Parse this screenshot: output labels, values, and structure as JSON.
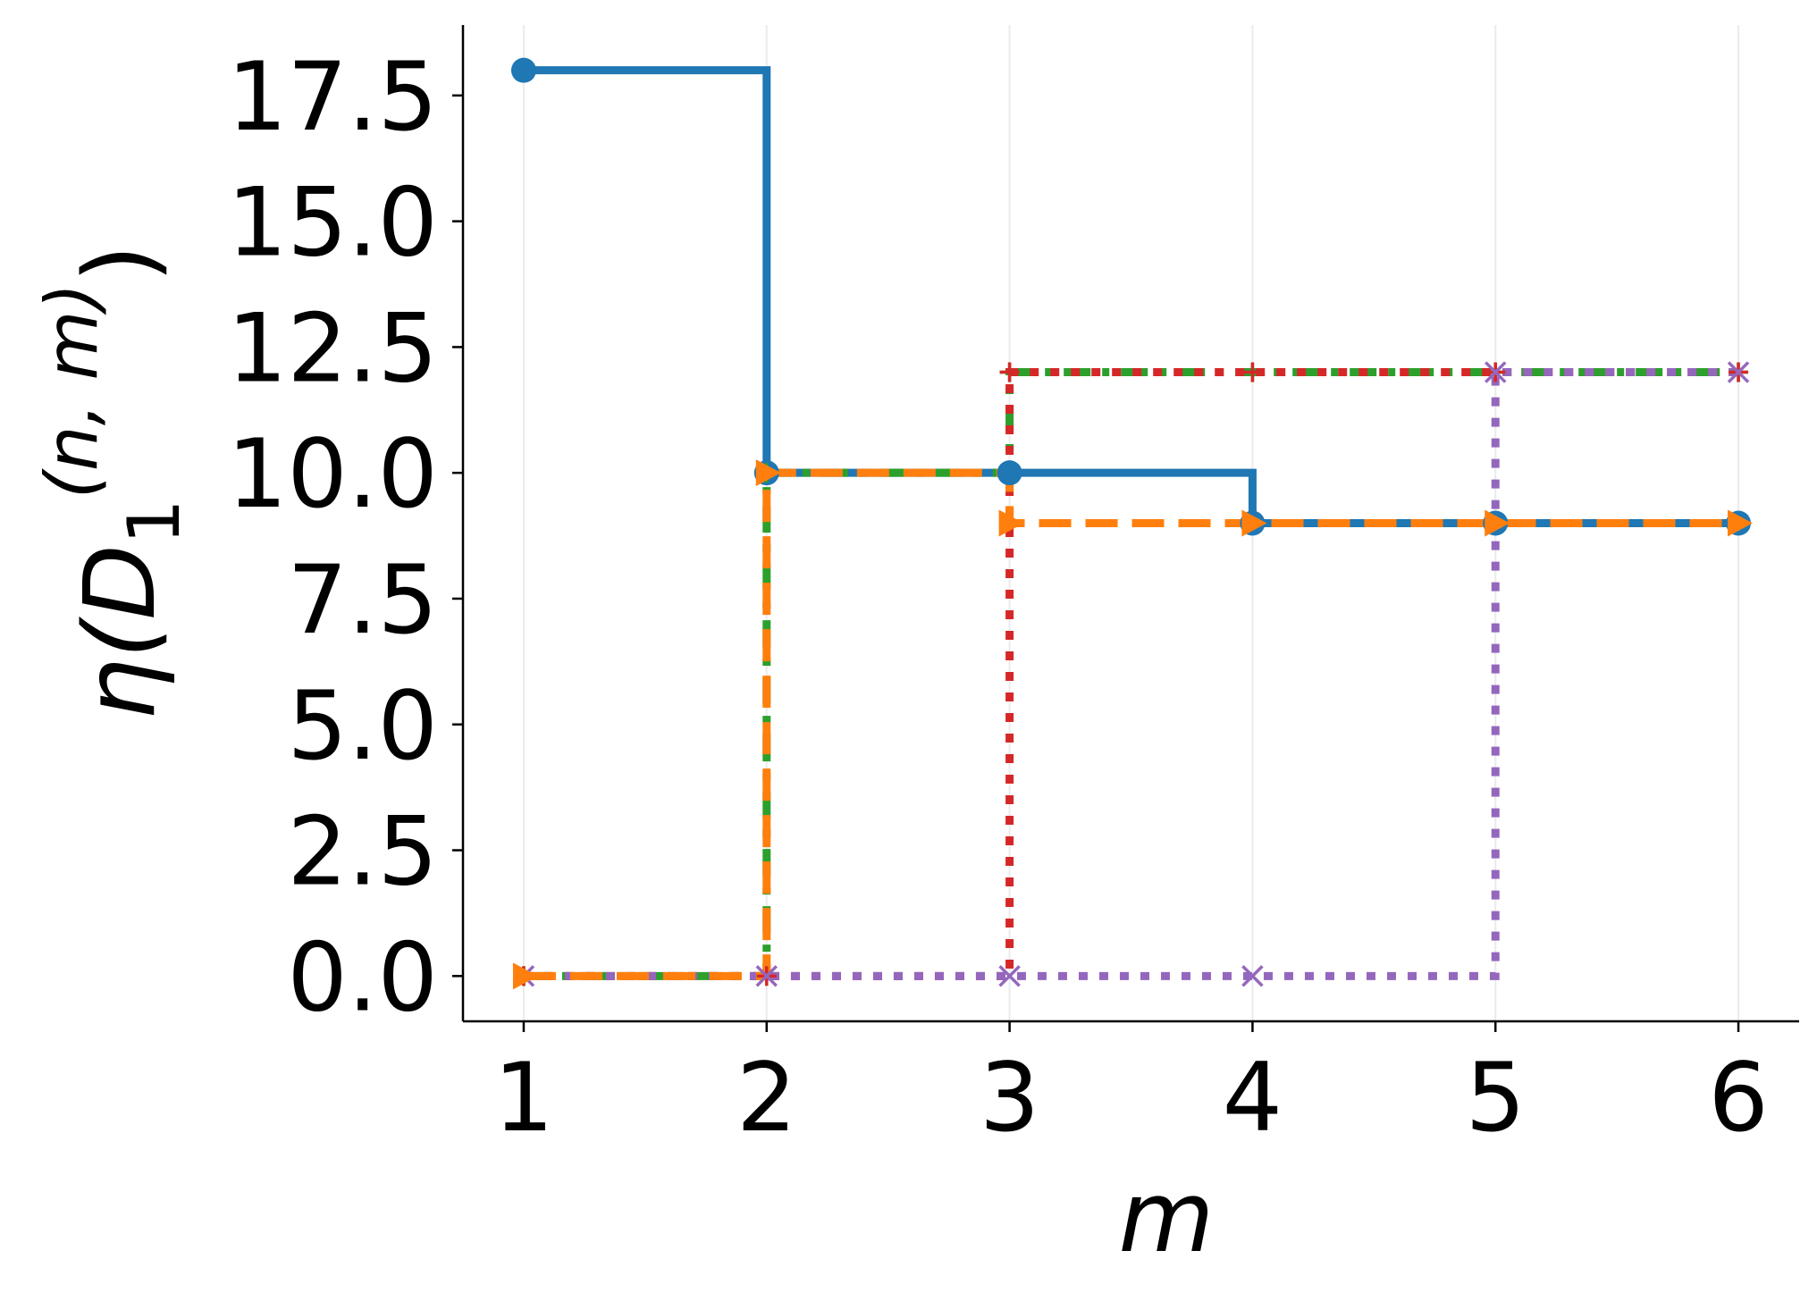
{
  "chart_data": {
    "type": "line",
    "xlabel": "m",
    "ylabel": {
      "base": "η(D",
      "subscript": "1",
      "superscript": "(n, m)",
      "close": ")"
    },
    "x_ticks": [
      "1",
      "2",
      "3",
      "4",
      "5",
      "6"
    ],
    "y_ticks": [
      "0.0",
      "2.5",
      "5.0",
      "7.5",
      "10.0",
      "12.5",
      "15.0",
      "17.5"
    ],
    "xlim": [
      0.75,
      6.25
    ],
    "ylim": [
      -0.9,
      18.9
    ],
    "grid": "vertical lines at x ticks",
    "legend": "none",
    "step_style": "post",
    "series": [
      {
        "color": "#1f77b4",
        "linestyle": "solid",
        "marker": "circle",
        "x": [
          1,
          2,
          3,
          4,
          5,
          6
        ],
        "y": [
          18,
          10,
          10,
          9,
          9,
          9
        ]
      },
      {
        "color": "#2ca02c",
        "linestyle": "dashdot",
        "marker": "plus",
        "x": [
          1,
          2,
          3,
          4,
          5,
          6
        ],
        "y": [
          0,
          10,
          12,
          12,
          12,
          12
        ]
      },
      {
        "color": "#d62728",
        "linestyle": "dotted",
        "marker": "plus",
        "x": [
          1,
          2,
          3,
          4,
          5,
          6
        ],
        "y": [
          0,
          0,
          12,
          12,
          12,
          12
        ]
      },
      {
        "color": "#9467bd",
        "linestyle": "dotted",
        "marker": "x",
        "x": [
          1,
          2,
          3,
          4,
          5,
          6
        ],
        "y": [
          0,
          0,
          0,
          0,
          12,
          12
        ]
      },
      {
        "color": "#ff7f0e",
        "linestyle": "dashed",
        "marker": "triangle-right",
        "x": [
          1,
          2,
          3,
          4,
          5,
          6
        ],
        "y": [
          0,
          10,
          9,
          9,
          9,
          9
        ]
      }
    ]
  }
}
